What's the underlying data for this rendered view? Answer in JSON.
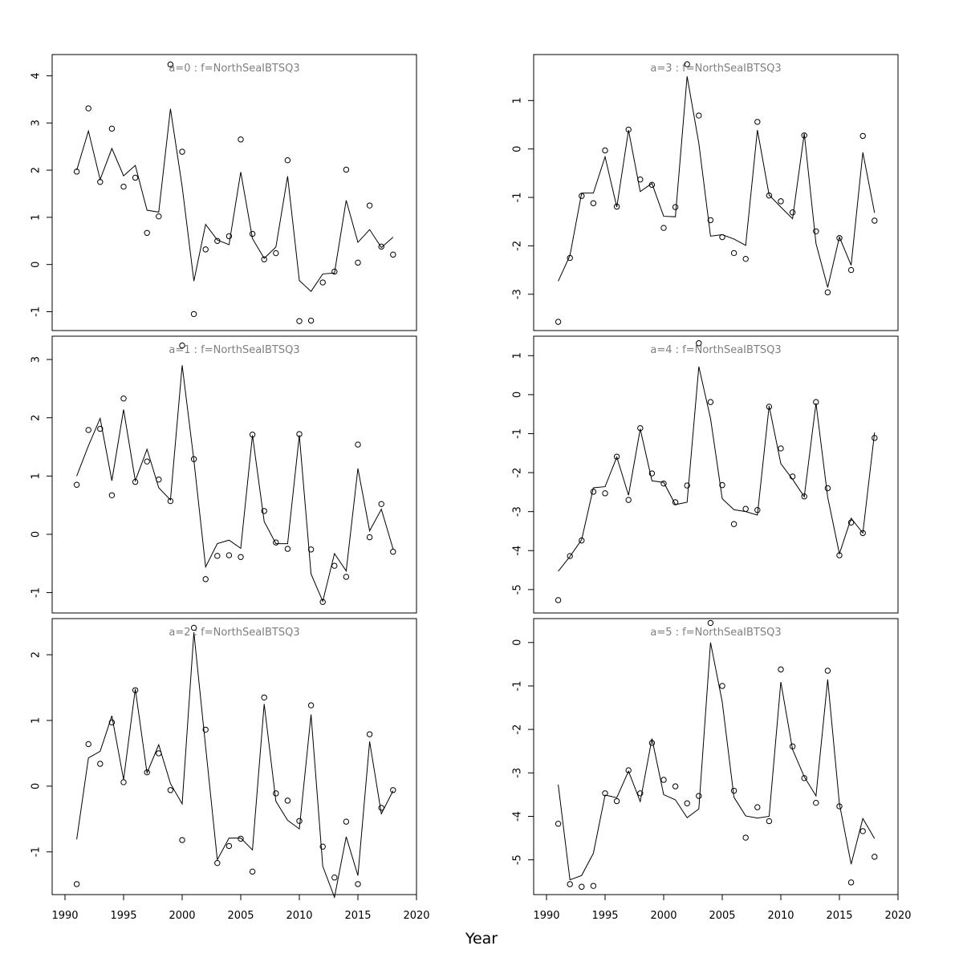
{
  "xlabel": "Year",
  "colors": {
    "frame": "#000000",
    "line": "#000000",
    "point": "#000000",
    "panel_title": "#7f7f7f"
  },
  "chart_data": [
    {
      "type": "line",
      "title": "a=0  :  f=NorthSeaIBTSQ3",
      "xlim": [
        1990,
        2020
      ],
      "ylim": [
        -1.4,
        4.45
      ],
      "yticks": [
        -1,
        0,
        1,
        2,
        3,
        4
      ],
      "x": [
        1991,
        1992,
        1993,
        1994,
        1995,
        1996,
        1997,
        1998,
        1999,
        2000,
        2001,
        2002,
        2003,
        2004,
        2005,
        2006,
        2007,
        2008,
        2009,
        2010,
        2011,
        2012,
        2013,
        2014,
        2015,
        2016,
        2017,
        2018
      ],
      "series": [
        {
          "kind": "points",
          "values": [
            1.97,
            3.31,
            1.75,
            2.88,
            1.65,
            1.84,
            0.67,
            1.02,
            4.24,
            2.39,
            -1.05,
            0.32,
            0.5,
            0.6,
            2.65,
            0.65,
            0.11,
            0.24,
            2.21,
            -1.2,
            -1.19,
            -0.38,
            -0.15,
            2.01,
            0.04,
            1.25,
            0.38,
            0.21
          ]
        },
        {
          "kind": "line",
          "values": [
            2.0,
            2.83,
            1.8,
            2.46,
            1.88,
            2.1,
            1.15,
            1.11,
            3.3,
            1.65,
            -0.35,
            0.85,
            0.52,
            0.42,
            1.96,
            0.55,
            0.13,
            0.37,
            1.87,
            -0.34,
            -0.57,
            -0.2,
            -0.18,
            1.36,
            0.47,
            0.74,
            0.36,
            0.58
          ]
        }
      ]
    },
    {
      "type": "line",
      "title": "a=3  :  f=NorthSeaIBTSQ3",
      "xlim": [
        1990,
        2020
      ],
      "ylim": [
        -3.75,
        1.95
      ],
      "yticks": [
        -3,
        -2,
        -1,
        0,
        1
      ],
      "x": [
        1991,
        1992,
        1993,
        1994,
        1995,
        1996,
        1997,
        1998,
        1999,
        2000,
        2001,
        2002,
        2003,
        2004,
        2005,
        2006,
        2007,
        2008,
        2009,
        2010,
        2011,
        2012,
        2013,
        2014,
        2015,
        2016,
        2017,
        2018
      ],
      "series": [
        {
          "kind": "points",
          "values": [
            -3.57,
            -2.25,
            -0.97,
            -1.12,
            -0.03,
            -1.19,
            0.4,
            -0.63,
            -0.74,
            -1.63,
            -1.2,
            1.75,
            0.69,
            -1.47,
            -1.82,
            -2.15,
            -2.27,
            0.56,
            -0.96,
            -1.08,
            -1.31,
            0.28,
            -1.7,
            -2.96,
            -1.84,
            -2.5,
            0.27,
            -1.48
          ]
        },
        {
          "kind": "line",
          "values": [
            -2.73,
            -2.2,
            -0.91,
            -0.91,
            -0.16,
            -1.2,
            0.39,
            -0.88,
            -0.71,
            -1.39,
            -1.4,
            1.5,
            0.12,
            -1.8,
            -1.77,
            -1.86,
            -1.99,
            0.39,
            -0.95,
            -1.2,
            -1.44,
            0.32,
            -1.95,
            -2.86,
            -1.82,
            -2.4,
            -0.07,
            -1.32
          ]
        }
      ]
    },
    {
      "type": "line",
      "title": "a=1  :  f=NorthSeaIBTSQ3",
      "xlim": [
        1990,
        2020
      ],
      "ylim": [
        -1.35,
        3.4
      ],
      "yticks": [
        -1,
        0,
        1,
        2,
        3
      ],
      "x": [
        1991,
        1992,
        1993,
        1994,
        1995,
        1996,
        1997,
        1998,
        1999,
        2000,
        2001,
        2002,
        2003,
        2004,
        2005,
        2006,
        2007,
        2008,
        2009,
        2010,
        2011,
        2012,
        2013,
        2014,
        2015,
        2016,
        2017,
        2018
      ],
      "series": [
        {
          "kind": "points",
          "values": [
            0.85,
            1.79,
            1.81,
            0.67,
            2.33,
            0.9,
            1.25,
            0.94,
            0.57,
            3.24,
            1.29,
            -0.77,
            -0.37,
            -0.36,
            -0.39,
            1.71,
            0.4,
            -0.14,
            -0.25,
            1.72,
            -0.26,
            -1.16,
            -0.54,
            -0.73,
            1.54,
            -0.05,
            0.52,
            -0.3
          ]
        },
        {
          "kind": "line",
          "values": [
            1.0,
            1.52,
            1.99,
            0.92,
            2.14,
            0.92,
            1.46,
            0.8,
            0.59,
            2.9,
            1.27,
            -0.56,
            -0.16,
            -0.1,
            -0.24,
            1.7,
            0.22,
            -0.16,
            -0.16,
            1.7,
            -0.68,
            -1.15,
            -0.33,
            -0.63,
            1.13,
            0.06,
            0.43,
            -0.25
          ]
        }
      ]
    },
    {
      "type": "line",
      "title": "a=4  :  f=NorthSeaIBTSQ3",
      "xlim": [
        1990,
        2020
      ],
      "ylim": [
        -5.6,
        1.5
      ],
      "yticks": [
        -5,
        -4,
        -3,
        -2,
        -1,
        0,
        1
      ],
      "x": [
        1991,
        1992,
        1993,
        1994,
        1995,
        1996,
        1997,
        1998,
        1999,
        2000,
        2001,
        2002,
        2003,
        2004,
        2005,
        2006,
        2007,
        2008,
        2009,
        2010,
        2011,
        2012,
        2013,
        2014,
        2015,
        2016,
        2017,
        2018
      ],
      "series": [
        {
          "kind": "points",
          "values": [
            -5.27,
            -4.14,
            -3.74,
            -2.49,
            -2.53,
            -1.59,
            -2.7,
            -0.86,
            -2.02,
            -2.28,
            -2.76,
            -2.33,
            1.32,
            -0.19,
            -2.32,
            -3.32,
            -2.93,
            -2.96,
            -0.31,
            -1.38,
            -2.1,
            -2.61,
            -0.19,
            -2.4,
            -4.12,
            -3.28,
            -3.55,
            -1.11
          ]
        },
        {
          "kind": "line",
          "values": [
            -4.53,
            -4.15,
            -3.72,
            -2.39,
            -2.36,
            -1.6,
            -2.58,
            -0.88,
            -2.21,
            -2.25,
            -2.82,
            -2.76,
            0.72,
            -0.61,
            -2.67,
            -2.95,
            -3.0,
            -3.09,
            -0.29,
            -1.77,
            -2.17,
            -2.62,
            -0.22,
            -2.63,
            -4.08,
            -3.17,
            -3.55,
            -0.97
          ]
        }
      ]
    },
    {
      "type": "line",
      "title": "a=2  :  f=NorthSeaIBTSQ3",
      "xlim": [
        1990,
        2020
      ],
      "ylim": [
        -1.65,
        2.55
      ],
      "yticks": [
        -1,
        0,
        1,
        2
      ],
      "x": [
        1991,
        1992,
        1993,
        1994,
        1995,
        1996,
        1997,
        1998,
        1999,
        2000,
        2001,
        2002,
        2003,
        2004,
        2005,
        2006,
        2007,
        2008,
        2009,
        2010,
        2011,
        2012,
        2013,
        2014,
        2015,
        2016,
        2017,
        2018
      ],
      "series": [
        {
          "kind": "points",
          "values": [
            -1.49,
            0.64,
            0.34,
            0.97,
            0.06,
            1.46,
            0.21,
            0.5,
            -0.06,
            -0.82,
            2.41,
            0.86,
            -1.17,
            -0.91,
            -0.8,
            -1.3,
            1.35,
            -0.11,
            -0.22,
            -0.53,
            1.23,
            -0.92,
            -1.39,
            -0.54,
            -1.49,
            0.79,
            -0.33,
            -0.06
          ]
        },
        {
          "kind": "line",
          "values": [
            -0.81,
            0.43,
            0.53,
            1.07,
            0.1,
            1.48,
            0.2,
            0.63,
            0.04,
            -0.27,
            2.34,
            0.6,
            -1.12,
            -0.79,
            -0.79,
            -0.97,
            1.25,
            -0.23,
            -0.52,
            -0.65,
            1.09,
            -1.22,
            -1.69,
            -0.77,
            -1.36,
            0.68,
            -0.42,
            -0.07
          ]
        }
      ]
    },
    {
      "type": "line",
      "title": "a=5  :  f=NorthSeaIBTSQ3",
      "xlim": [
        1990,
        2020
      ],
      "ylim": [
        -5.8,
        0.55
      ],
      "yticks": [
        -5,
        -4,
        -3,
        -2,
        -1,
        0
      ],
      "x": [
        1991,
        1992,
        1993,
        1994,
        1995,
        1996,
        1997,
        1998,
        1999,
        2000,
        2001,
        2002,
        2003,
        2004,
        2005,
        2006,
        2007,
        2008,
        2009,
        2010,
        2011,
        2012,
        2013,
        2014,
        2015,
        2016,
        2017,
        2018
      ],
      "series": [
        {
          "kind": "points",
          "values": [
            -4.17,
            -5.56,
            -5.62,
            -5.6,
            -3.47,
            -3.65,
            -2.94,
            -3.47,
            -2.31,
            -3.16,
            -3.31,
            -3.7,
            -3.53,
            0.45,
            -1.0,
            -3.41,
            -4.49,
            -3.79,
            -4.11,
            -0.62,
            -2.39,
            -3.12,
            -3.69,
            -0.65,
            -3.77,
            -5.52,
            -4.34,
            -4.93
          ]
        },
        {
          "kind": "line",
          "values": [
            -3.27,
            -5.46,
            -5.36,
            -4.85,
            -3.51,
            -3.57,
            -2.96,
            -3.66,
            -2.21,
            -3.5,
            -3.62,
            -4.03,
            -3.83,
            0.0,
            -1.37,
            -3.56,
            -3.99,
            -4.04,
            -4.0,
            -0.91,
            -2.46,
            -3.09,
            -3.53,
            -0.85,
            -3.71,
            -5.1,
            -4.05,
            -4.51
          ]
        }
      ]
    }
  ]
}
